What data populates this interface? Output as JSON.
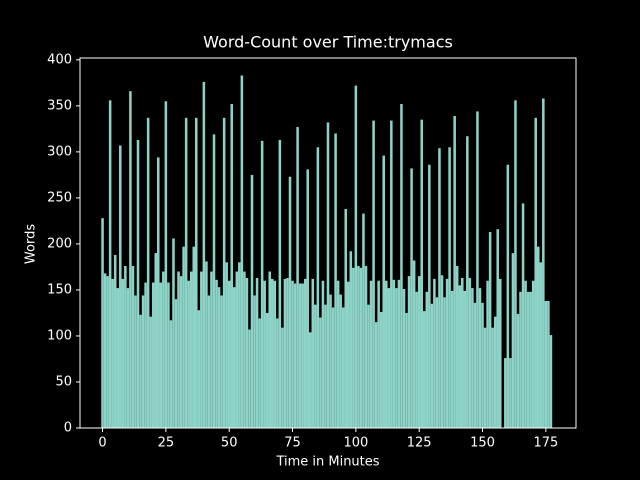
{
  "chart_data": {
    "type": "bar",
    "title": "Word-Count over Time:trymacs",
    "x_label": "Time in Minutes",
    "y_label": "Words",
    "color": "#8dd3c7",
    "x": [
      0,
      1,
      2,
      3,
      4,
      5,
      6,
      7,
      8,
      9,
      10,
      11,
      12,
      13,
      14,
      15,
      16,
      17,
      18,
      19,
      20,
      21,
      22,
      23,
      24,
      25,
      26,
      27,
      28,
      29,
      30,
      31,
      32,
      33,
      34,
      35,
      36,
      37,
      38,
      39,
      40,
      41,
      42,
      43,
      44,
      45,
      46,
      47,
      48,
      49,
      50,
      51,
      52,
      53,
      54,
      55,
      56,
      57,
      58,
      59,
      60,
      61,
      62,
      63,
      64,
      65,
      66,
      67,
      68,
      69,
      70,
      71,
      72,
      73,
      74,
      75,
      76,
      77,
      78,
      79,
      80,
      81,
      82,
      83,
      84,
      85,
      86,
      87,
      88,
      89,
      90,
      91,
      92,
      93,
      94,
      95,
      96,
      97,
      98,
      99,
      100,
      101,
      102,
      103,
      104,
      105,
      106,
      107,
      108,
      109,
      110,
      111,
      112,
      113,
      114,
      115,
      116,
      117,
      118,
      119,
      120,
      121,
      122,
      123,
      124,
      125,
      126,
      127,
      128,
      129,
      130,
      131,
      132,
      133,
      134,
      135,
      136,
      137,
      138,
      139,
      140,
      141,
      142,
      143,
      144,
      145,
      146,
      147,
      148,
      149,
      150,
      151,
      152,
      153,
      154,
      155,
      156,
      157,
      158,
      159,
      160,
      161,
      162,
      163,
      164,
      165,
      166,
      167,
      168,
      169,
      170,
      171,
      172,
      173,
      174,
      175,
      176,
      177
    ],
    "values": [
      228,
      168,
      165,
      356,
      162,
      188,
      152,
      307,
      162,
      176,
      152,
      366,
      176,
      144,
      313,
      123,
      144,
      158,
      337,
      121,
      158,
      190,
      294,
      158,
      170,
      355,
      158,
      117,
      206,
      140,
      170,
      165,
      197,
      337,
      160,
      170,
      197,
      337,
      128,
      170,
      376,
      181,
      144,
      170,
      319,
      161,
      153,
      144,
      337,
      180,
      160,
      352,
      153,
      170,
      180,
      383,
      170,
      163,
      107,
      275,
      144,
      163,
      119,
      312,
      160,
      125,
      170,
      162,
      160,
      119,
      313,
      109,
      162,
      163,
      273,
      160,
      157,
      327,
      157,
      157,
      162,
      281,
      104,
      162,
      134,
      305,
      120,
      160,
      134,
      332,
      145,
      131,
      320,
      160,
      145,
      131,
      238,
      159,
      192,
      174,
      372,
      176,
      174,
      233,
      176,
      134,
      160,
      334,
      115,
      160,
      126,
      296,
      160,
      152,
      334,
      161,
      152,
      161,
      352,
      151,
      125,
      165,
      282,
      182,
      148,
      165,
      335,
      127,
      148,
      286,
      135,
      162,
      142,
      304,
      166,
      142,
      162,
      305,
      149,
      339,
      176,
      155,
      163,
      149,
      317,
      163,
      152,
      136,
      344,
      152,
      136,
      109,
      160,
      213,
      109,
      121,
      216,
      162,
      0,
      76,
      286,
      76,
      190,
      356,
      124,
      148,
      244,
      160,
      148,
      148,
      160,
      337,
      197,
      180,
      358,
      138,
      138,
      101
    ],
    "xlim": [
      -8.9,
      186.9
    ],
    "xticks": [
      0,
      25,
      50,
      75,
      100,
      125,
      150,
      175
    ],
    "ylim": [
      0,
      402
    ],
    "yticks": [
      0,
      50,
      100,
      150,
      200,
      250,
      300,
      350,
      400
    ]
  }
}
